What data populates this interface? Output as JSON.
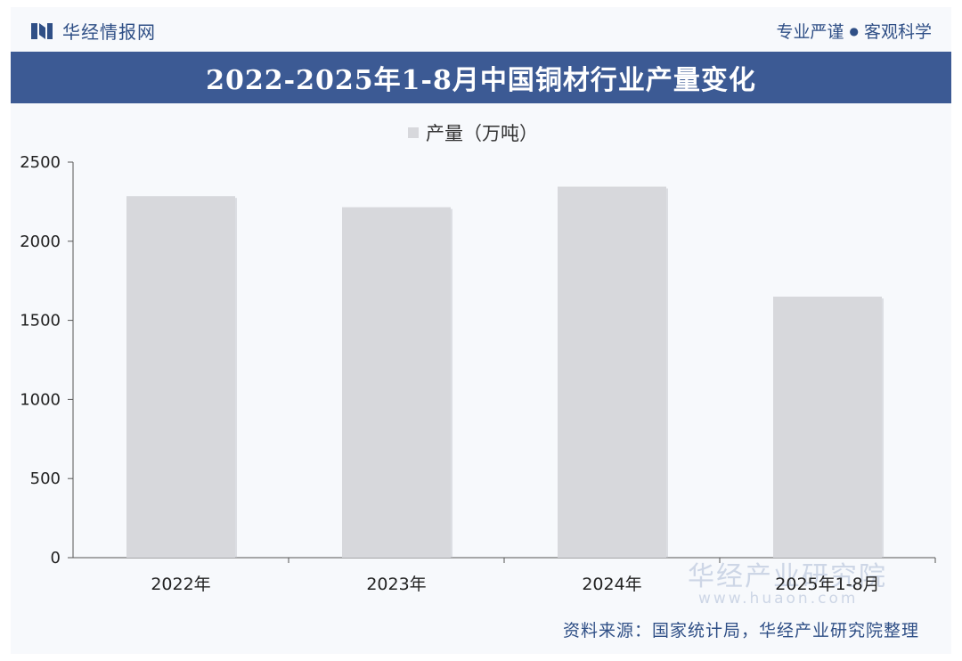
{
  "header": {
    "brand_name": "华经情报网",
    "slogan_left": "专业严谨",
    "slogan_dot": "●",
    "slogan_right": "客观科学"
  },
  "title": "2022-2025年1-8月中国铜材行业产量变化",
  "source": "资料来源：国家统计局，华经产业研究院整理",
  "watermark": {
    "name": "华经产业研究院",
    "url": "www.huaon.com"
  },
  "colors": {
    "header_blue": "#3c5a94",
    "bar": "#d7d8dc",
    "axis": "#555555"
  },
  "chart_data": {
    "type": "bar",
    "categories": [
      "2022年",
      "2023年",
      "2024年",
      "2025年1-8月"
    ],
    "series": [
      {
        "name": "产量（万吨）",
        "values": [
          2285,
          2215,
          2345,
          1650
        ]
      }
    ],
    "ylim": [
      0,
      2500
    ],
    "yticks": [
      0,
      500,
      1000,
      1500,
      2000,
      2500
    ],
    "grid": false,
    "legend": "top-center"
  }
}
